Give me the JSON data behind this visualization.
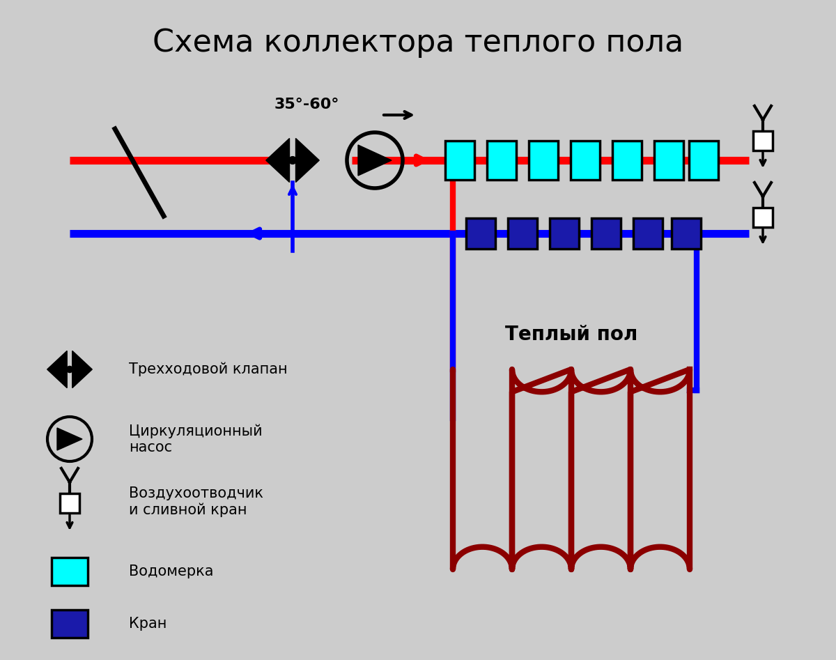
{
  "title": "Схема коллектора теплого пола",
  "bg_color": "#cccccc",
  "red_color": "#ff0000",
  "blue_color": "#0000ff",
  "dark_red_color": "#8b0000",
  "cyan_color": "#00ffff",
  "dark_blue_color": "#1a1aaa",
  "black_color": "#000000",
  "white_color": "#ffffff",
  "temp_label": "35°-60°",
  "floor_label": "Теплый пол",
  "legend_valve": "Трехходовой клапан",
  "legend_pump": "Циркуляционный\nнасос",
  "legend_vent": "Воздухоотводчик\nи сливной кран",
  "legend_flow": "Водомерка",
  "legend_crane": "Кран"
}
